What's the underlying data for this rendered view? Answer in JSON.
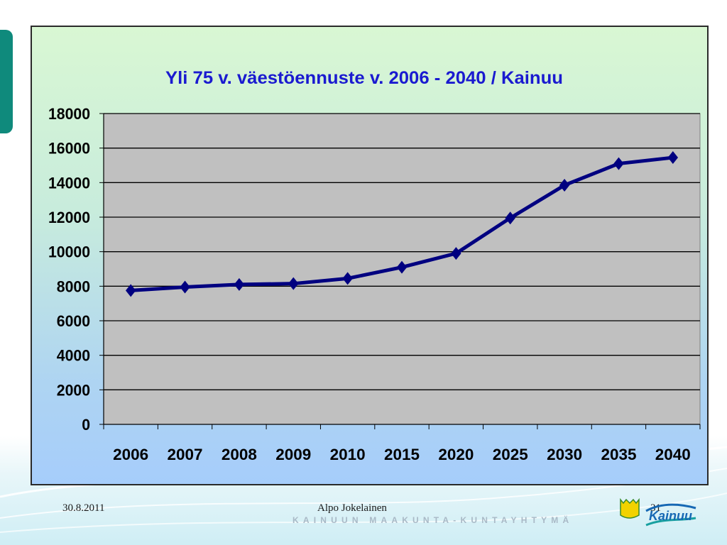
{
  "footer": {
    "date": "30.8.2011",
    "author": "Alpo Jokelainen",
    "page": "31",
    "brand": "KAINUUN MAAKUNTA-KUNTAYHTYMÄ",
    "logo_text": "Kainuu"
  },
  "colors": {
    "line": "#000080",
    "title": "#1a1ad0",
    "plot_bg": "#c0c0c0"
  },
  "chart_data": {
    "type": "line",
    "title": "Yli 75 v. väestöennuste v. 2006 - 2040 / Kainuu",
    "xlabel": "",
    "ylabel": "",
    "categories": [
      "2006",
      "2007",
      "2008",
      "2009",
      "2010",
      "2015",
      "2020",
      "2025",
      "2030",
      "2035",
      "2040"
    ],
    "series": [
      {
        "values": [
          7750,
          7950,
          8100,
          8150,
          8450,
          9100,
          9900,
          11950,
          13850,
          15100,
          15450
        ]
      }
    ],
    "ylim": [
      0,
      18000
    ],
    "yticks": [
      "0",
      "2000",
      "4000",
      "6000",
      "8000",
      "10000",
      "12000",
      "14000",
      "16000",
      "18000"
    ],
    "grid": true,
    "legend": "none"
  }
}
